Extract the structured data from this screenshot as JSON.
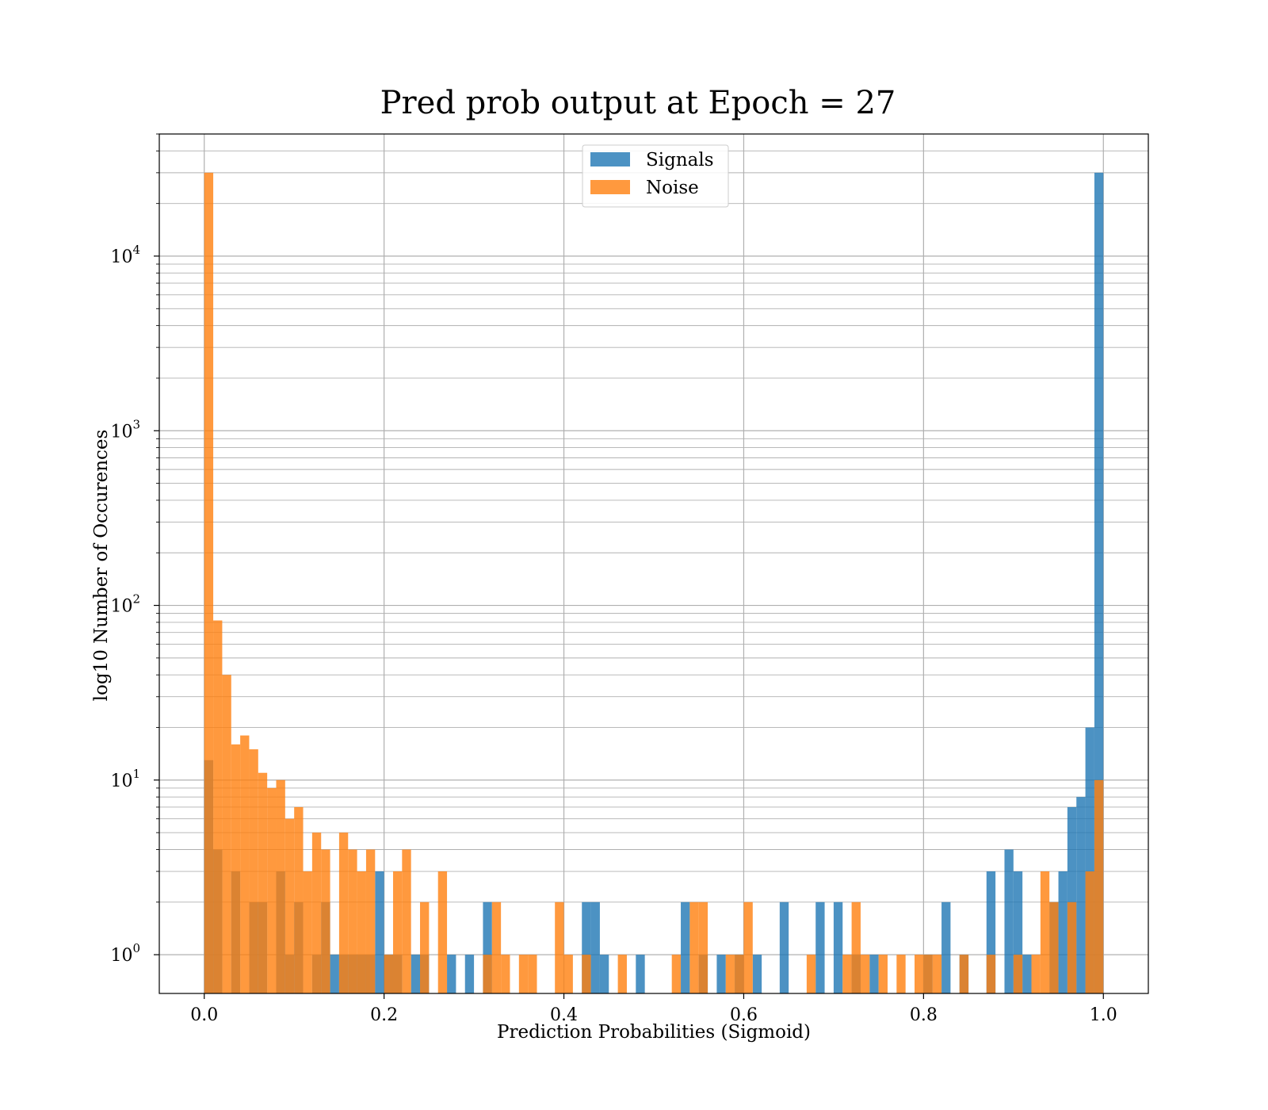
{
  "chart_data": {
    "type": "bar",
    "title": "Pred prob output at Epoch = 27",
    "xlabel": "Prediction Probabilities (Sigmoid)",
    "ylabel": "log10 Number of Occurences",
    "xlim": [
      -0.05,
      1.05
    ],
    "ylim": [
      0.6,
      50000
    ],
    "yscale": "log",
    "grid": true,
    "legend_position": "upper-center",
    "bin_width": 0.01,
    "x_ticks": [
      {
        "value": 0.0,
        "label": "0.0"
      },
      {
        "value": 0.2,
        "label": "0.2"
      },
      {
        "value": 0.4,
        "label": "0.4"
      },
      {
        "value": 0.6,
        "label": "0.6"
      },
      {
        "value": 0.8,
        "label": "0.8"
      },
      {
        "value": 1.0,
        "label": "1.0"
      }
    ],
    "y_ticks": [
      {
        "value": 1,
        "base": "10",
        "exp": "0"
      },
      {
        "value": 10,
        "base": "10",
        "exp": "1"
      },
      {
        "value": 100,
        "base": "10",
        "exp": "2"
      },
      {
        "value": 1000,
        "base": "10",
        "exp": "3"
      },
      {
        "value": 10000,
        "base": "10",
        "exp": "4"
      }
    ],
    "series": [
      {
        "name": "Signals",
        "color": "#1f77b4",
        "bins": [
          [
            0.0,
            13
          ],
          [
            0.01,
            4
          ],
          [
            0.03,
            3
          ],
          [
            0.05,
            2
          ],
          [
            0.06,
            2
          ],
          [
            0.08,
            3
          ],
          [
            0.09,
            1
          ],
          [
            0.1,
            2
          ],
          [
            0.12,
            1
          ],
          [
            0.13,
            2
          ],
          [
            0.14,
            1
          ],
          [
            0.15,
            1
          ],
          [
            0.16,
            1
          ],
          [
            0.17,
            1
          ],
          [
            0.18,
            1
          ],
          [
            0.19,
            3
          ],
          [
            0.2,
            1
          ],
          [
            0.21,
            1
          ],
          [
            0.23,
            1
          ],
          [
            0.24,
            1
          ],
          [
            0.27,
            1
          ],
          [
            0.29,
            1
          ],
          [
            0.31,
            2
          ],
          [
            0.42,
            2
          ],
          [
            0.43,
            2
          ],
          [
            0.44,
            1
          ],
          [
            0.48,
            1
          ],
          [
            0.53,
            2
          ],
          [
            0.55,
            1
          ],
          [
            0.57,
            1
          ],
          [
            0.59,
            1
          ],
          [
            0.61,
            1
          ],
          [
            0.64,
            2
          ],
          [
            0.68,
            2
          ],
          [
            0.7,
            2
          ],
          [
            0.72,
            1
          ],
          [
            0.74,
            1
          ],
          [
            0.8,
            1
          ],
          [
            0.82,
            2
          ],
          [
            0.84,
            1
          ],
          [
            0.87,
            3
          ],
          [
            0.89,
            4
          ],
          [
            0.9,
            3
          ],
          [
            0.91,
            1
          ],
          [
            0.94,
            2
          ],
          [
            0.95,
            3
          ],
          [
            0.96,
            7
          ],
          [
            0.97,
            8
          ],
          [
            0.98,
            20
          ],
          [
            0.99,
            30000
          ]
        ]
      },
      {
        "name": "Noise",
        "color": "#ff7f0e",
        "bins": [
          [
            0.0,
            30000
          ],
          [
            0.01,
            82
          ],
          [
            0.02,
            40
          ],
          [
            0.03,
            16
          ],
          [
            0.04,
            18
          ],
          [
            0.05,
            15
          ],
          [
            0.06,
            11
          ],
          [
            0.07,
            9
          ],
          [
            0.08,
            10
          ],
          [
            0.09,
            6
          ],
          [
            0.1,
            7
          ],
          [
            0.11,
            3
          ],
          [
            0.12,
            5
          ],
          [
            0.13,
            4
          ],
          [
            0.15,
            5
          ],
          [
            0.16,
            4
          ],
          [
            0.17,
            3
          ],
          [
            0.18,
            4
          ],
          [
            0.2,
            1
          ],
          [
            0.21,
            3
          ],
          [
            0.22,
            4
          ],
          [
            0.24,
            2
          ],
          [
            0.26,
            3
          ],
          [
            0.31,
            1
          ],
          [
            0.32,
            2
          ],
          [
            0.33,
            1
          ],
          [
            0.35,
            1
          ],
          [
            0.36,
            1
          ],
          [
            0.39,
            2
          ],
          [
            0.4,
            1
          ],
          [
            0.42,
            1
          ],
          [
            0.46,
            1
          ],
          [
            0.52,
            1
          ],
          [
            0.54,
            2
          ],
          [
            0.55,
            2
          ],
          [
            0.58,
            1
          ],
          [
            0.59,
            1
          ],
          [
            0.6,
            2
          ],
          [
            0.67,
            1
          ],
          [
            0.71,
            1
          ],
          [
            0.72,
            2
          ],
          [
            0.73,
            1
          ],
          [
            0.75,
            1
          ],
          [
            0.77,
            1
          ],
          [
            0.79,
            1
          ],
          [
            0.8,
            1
          ],
          [
            0.81,
            1
          ],
          [
            0.84,
            1
          ],
          [
            0.87,
            1
          ],
          [
            0.9,
            1
          ],
          [
            0.92,
            1
          ],
          [
            0.93,
            3
          ],
          [
            0.94,
            2
          ],
          [
            0.96,
            2
          ],
          [
            0.98,
            3
          ],
          [
            0.99,
            10
          ]
        ]
      }
    ]
  }
}
